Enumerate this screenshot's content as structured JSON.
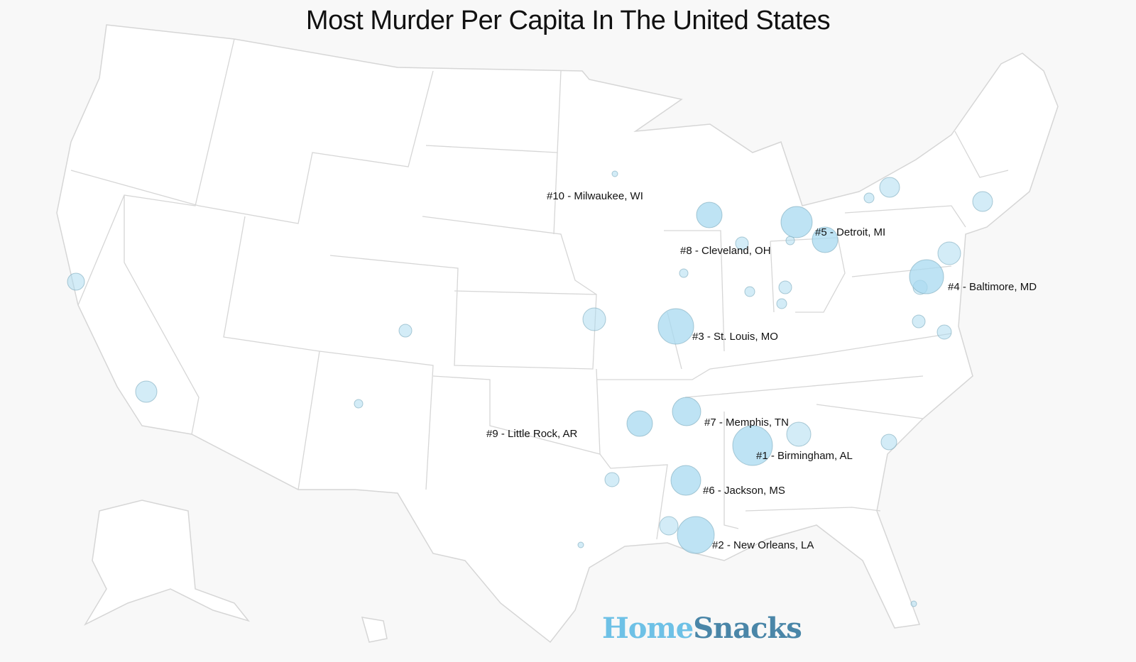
{
  "title": "Most Murder Per Capita In The United States",
  "logo": {
    "part1": "Home",
    "part2": "Snacks"
  },
  "colors": {
    "bubble_fill": "#a8daf0",
    "bubble_stroke": "#7aa8bb",
    "state_border": "#d6d6d6",
    "land": "#ffffff",
    "background": "#f8f8f8"
  },
  "ranked_cities": [
    {
      "rank": 1,
      "label": "#1 - Birmingham, AL"
    },
    {
      "rank": 2,
      "label": "#2 - New Orleans, LA"
    },
    {
      "rank": 3,
      "label": "#3 - St. Louis, MO"
    },
    {
      "rank": 4,
      "label": "#4 - Baltimore, MD"
    },
    {
      "rank": 5,
      "label": "#5 - Detroit, MI"
    },
    {
      "rank": 6,
      "label": "#6 - Jackson, MS"
    },
    {
      "rank": 7,
      "label": "#7 - Memphis, TN"
    },
    {
      "rank": 8,
      "label": "#8 - Cleveland, OH"
    },
    {
      "rank": 9,
      "label": "#9 - Little Rock, AR"
    },
    {
      "rank": 10,
      "label": "#10 - Milwaukee, WI"
    }
  ]
}
